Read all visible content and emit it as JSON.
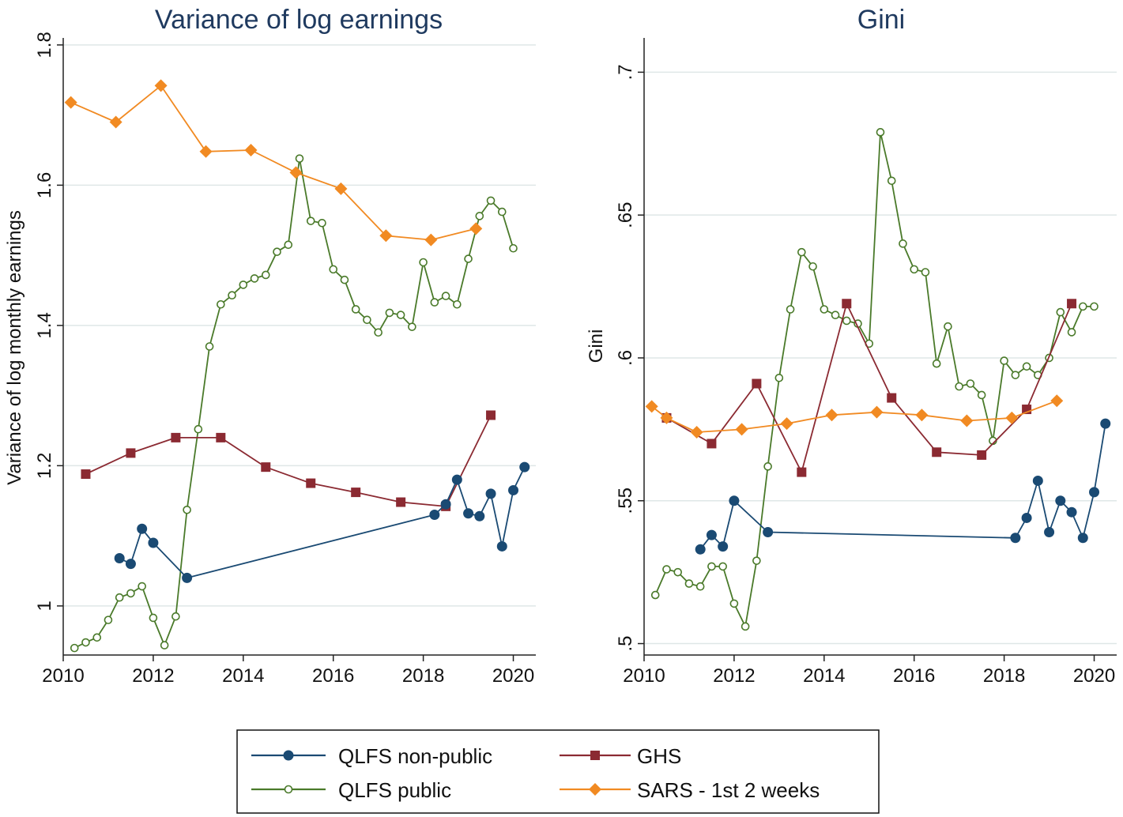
{
  "chart_data": [
    {
      "type": "line",
      "title": "Variance of log earnings",
      "xlabel": "",
      "ylabel": "Variance of log monthly earnings",
      "xlim": [
        2010,
        2020.5
      ],
      "ylim": [
        0.93,
        1.81
      ],
      "xticks": [
        2010,
        2012,
        2014,
        2016,
        2018,
        2020
      ],
      "xtick_labels": [
        "2010",
        "2012",
        "2014",
        "2016",
        "2018",
        "2020"
      ],
      "yticks": [
        1.0,
        1.2,
        1.4,
        1.6,
        1.8
      ],
      "ytick_labels": [
        "1",
        "1.2",
        "1.4",
        "1.6",
        "1.8"
      ],
      "grid": true,
      "series": [
        {
          "name": "QLFS non-public",
          "x": [
            2011.25,
            2011.5,
            2011.75,
            2012.0,
            2012.75,
            2018.25,
            2018.5,
            2018.75,
            2019.0,
            2019.25,
            2019.5,
            2019.75,
            2020.0,
            2020.25
          ],
          "y": [
            1.068,
            1.06,
            1.11,
            1.09,
            1.04,
            1.13,
            1.145,
            1.18,
            1.132,
            1.128,
            1.16,
            1.085,
            1.165,
            1.198
          ]
        },
        {
          "name": "QLFS public",
          "x": [
            2010.25,
            2010.5,
            2010.75,
            2011.0,
            2011.25,
            2011.5,
            2011.75,
            2012.0,
            2012.25,
            2012.5,
            2012.75,
            2013.0,
            2013.25,
            2013.5,
            2013.75,
            2014.0,
            2014.25,
            2014.5,
            2014.75,
            2015.0,
            2015.25,
            2015.5,
            2015.75,
            2016.0,
            2016.25,
            2016.5,
            2016.75,
            2017.0,
            2017.25,
            2017.5,
            2017.75,
            2018.0,
            2018.25,
            2018.5,
            2018.75,
            2019.0,
            2019.25,
            2019.5,
            2019.75,
            2020.0
          ],
          "y": [
            0.94,
            0.948,
            0.955,
            0.98,
            1.012,
            1.018,
            1.028,
            0.983,
            0.944,
            0.985,
            1.137,
            1.252,
            1.37,
            1.43,
            1.443,
            1.458,
            1.467,
            1.472,
            1.505,
            1.515,
            1.638,
            1.549,
            1.546,
            1.48,
            1.465,
            1.423,
            1.408,
            1.39,
            1.418,
            1.415,
            1.398,
            1.49,
            1.433,
            1.442,
            1.43,
            1.495,
            1.556,
            1.578,
            1.562,
            1.51
          ]
        },
        {
          "name": "GHS",
          "x": [
            2010.5,
            2011.5,
            2012.5,
            2013.5,
            2014.5,
            2015.5,
            2016.5,
            2017.5,
            2018.5,
            2019.5
          ],
          "y": [
            1.188,
            1.218,
            1.24,
            1.24,
            1.198,
            1.175,
            1.162,
            1.148,
            1.142,
            1.272
          ]
        },
        {
          "name": "SARS - 1st 2 weeks",
          "x": [
            2010.17,
            2011.17,
            2012.17,
            2013.17,
            2014.17,
            2015.17,
            2016.17,
            2017.17,
            2018.17,
            2019.17
          ],
          "y": [
            1.718,
            1.69,
            1.742,
            1.648,
            1.65,
            1.618,
            1.595,
            1.528,
            1.522,
            1.538
          ]
        }
      ]
    },
    {
      "type": "line",
      "title": "Gini",
      "xlabel": "",
      "ylabel": "Gini",
      "xlim": [
        2010,
        2020.5
      ],
      "ylim": [
        0.496,
        0.712
      ],
      "xticks": [
        2010,
        2012,
        2014,
        2016,
        2018,
        2020
      ],
      "xtick_labels": [
        "2010",
        "2012",
        "2014",
        "2016",
        "2018",
        "2020"
      ],
      "yticks": [
        0.5,
        0.55,
        0.6,
        0.65,
        0.7
      ],
      "ytick_labels": [
        ".5",
        ".55",
        ".6",
        ".65",
        ".7"
      ],
      "grid": true,
      "series": [
        {
          "name": "QLFS non-public",
          "x": [
            2011.25,
            2011.5,
            2011.75,
            2012.0,
            2012.75,
            2018.25,
            2018.5,
            2018.75,
            2019.0,
            2019.25,
            2019.5,
            2019.75,
            2020.0,
            2020.25
          ],
          "y": [
            0.533,
            0.538,
            0.534,
            0.55,
            0.539,
            0.537,
            0.544,
            0.557,
            0.539,
            0.55,
            0.546,
            0.537,
            0.553,
            0.577
          ]
        },
        {
          "name": "QLFS public",
          "x": [
            2010.25,
            2010.5,
            2010.75,
            2011.0,
            2011.25,
            2011.5,
            2011.75,
            2012.0,
            2012.25,
            2012.5,
            2012.75,
            2013.0,
            2013.25,
            2013.5,
            2013.75,
            2014.0,
            2014.25,
            2014.5,
            2014.75,
            2015.0,
            2015.25,
            2015.5,
            2015.75,
            2016.0,
            2016.25,
            2016.5,
            2016.75,
            2017.0,
            2017.25,
            2017.5,
            2017.75,
            2018.0,
            2018.25,
            2018.5,
            2018.75,
            2019.0,
            2019.25,
            2019.5,
            2019.75,
            2020.0
          ],
          "y": [
            0.517,
            0.526,
            0.525,
            0.521,
            0.52,
            0.527,
            0.527,
            0.514,
            0.506,
            0.529,
            0.562,
            0.593,
            0.617,
            0.637,
            0.632,
            0.617,
            0.615,
            0.613,
            0.612,
            0.605,
            0.679,
            0.662,
            0.64,
            0.631,
            0.63,
            0.598,
            0.611,
            0.59,
            0.591,
            0.587,
            0.571,
            0.599,
            0.594,
            0.597,
            0.594,
            0.6,
            0.616,
            0.609,
            0.618,
            0.618
          ]
        },
        {
          "name": "GHS",
          "x": [
            2010.5,
            2011.5,
            2012.5,
            2013.5,
            2014.5,
            2015.5,
            2016.5,
            2017.5,
            2018.5,
            2019.5
          ],
          "y": [
            0.579,
            0.57,
            0.591,
            0.56,
            0.619,
            0.586,
            0.567,
            0.566,
            0.582,
            0.619
          ]
        },
        {
          "name": "SARS - 1st 2 weeks",
          "x": [
            2010.17,
            2010.5,
            2011.17,
            2012.17,
            2013.17,
            2014.17,
            2015.17,
            2016.17,
            2017.17,
            2018.17,
            2019.17
          ],
          "y": [
            0.583,
            0.579,
            0.574,
            0.575,
            0.577,
            0.58,
            0.581,
            0.58,
            0.578,
            0.579,
            0.585
          ]
        }
      ]
    }
  ],
  "legend": {
    "placement": "bottom",
    "items": [
      {
        "label": "QLFS non-public",
        "color": "#1a4a73",
        "marker": "circle-filled"
      },
      {
        "label": "GHS",
        "color": "#8b2a32",
        "marker": "square"
      },
      {
        "label": "QLFS public",
        "color": "#4a7a2a",
        "marker": "circle-hollow"
      },
      {
        "label": "SARS - 1st 2 weeks",
        "color": "#f18a22",
        "marker": "diamond"
      }
    ]
  },
  "colors": {
    "title": "#1f3a5f",
    "grid": "#dfe7e7",
    "qlfs_non_public": "#1a4a73",
    "qlfs_public": "#4a7a2a",
    "ghs": "#8b2a32",
    "sars": "#f18a22"
  }
}
